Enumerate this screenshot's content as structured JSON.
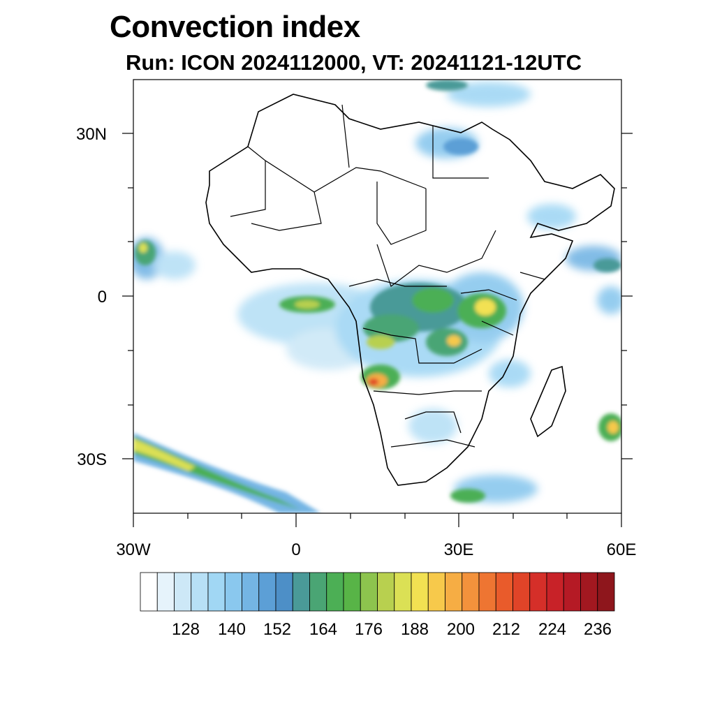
{
  "header": {
    "title": "Convection index",
    "subtitle": "Run: ICON 2024112000,  VT: 20241121-12UTC"
  },
  "map": {
    "region": "Africa",
    "lon_range": [
      -30,
      60
    ],
    "lat_range": [
      -40,
      40
    ],
    "lat_ticks": [
      "30N",
      "0",
      "30S"
    ],
    "lon_ticks": [
      "30W",
      "0",
      "30E",
      "60E"
    ]
  },
  "colorbar": {
    "labels": [
      "128",
      "140",
      "152",
      "164",
      "176",
      "188",
      "200",
      "212",
      "224",
      "236"
    ],
    "colors": [
      "#ffffff",
      "#e6f3fb",
      "#cde8f7",
      "#b7e0f6",
      "#a1d7f4",
      "#8ac8ee",
      "#74b5e4",
      "#5c9fd6",
      "#4d8fc7",
      "#4a9a98",
      "#4aa574",
      "#4caf55",
      "#58b447",
      "#8dc44e",
      "#b8d04f",
      "#dbe055",
      "#f2e152",
      "#f7c94b",
      "#f6ad44",
      "#f3923c",
      "#ee7532",
      "#e95b2b",
      "#e04428",
      "#d52f29",
      "#c82228",
      "#b51a25",
      "#a21820",
      "#8e161c"
    ]
  }
}
